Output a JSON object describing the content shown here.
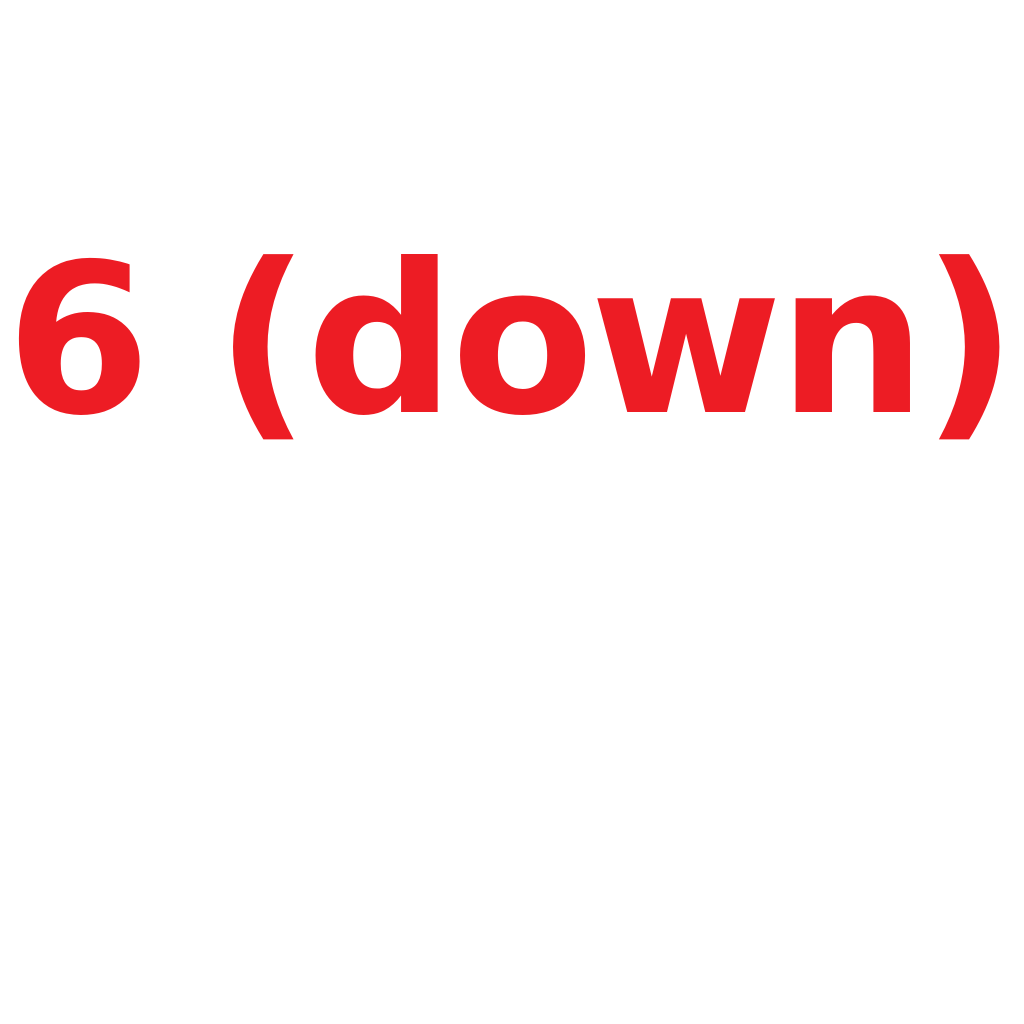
{
  "label": {
    "text": "6 (down)",
    "color": "#ed1c24"
  },
  "background": "#ffffff"
}
